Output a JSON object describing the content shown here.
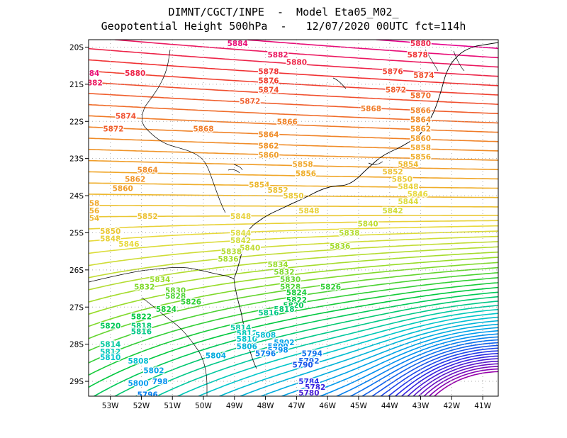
{
  "title_line1": "DIMNT/CGCT/INPE  -  Model Eta05_M02_",
  "title_line2": "Geopotential Height 500hPa  -   12/07/2020 00UTC fct=114h",
  "x_ticks": [
    "53W",
    "52W",
    "51W",
    "50W",
    "49W",
    "48W",
    "47W",
    "46W",
    "45W",
    "44W",
    "43W",
    "42W",
    "41W"
  ],
  "y_ticks": [
    "20S",
    "21S",
    "22S",
    "23S",
    "24S",
    "25S",
    "26S",
    "27S",
    "28S",
    "29S"
  ],
  "chart_data": {
    "type": "contour",
    "field": "Geopotential Height 500hPa",
    "lon_range": [
      -53.7,
      -40.5
    ],
    "lat_range": [
      -29.4,
      -19.8
    ],
    "contour_interval": 2,
    "contour_levels_range": [
      5770,
      5886
    ],
    "labels": [
      {
        "value": "5884",
        "lon": -48.9,
        "lat": -19.9
      },
      {
        "value": "5882",
        "lon": -47.6,
        "lat": -20.2
      },
      {
        "value": "5880",
        "lon": -47.0,
        "lat": -20.4
      },
      {
        "value": "5880",
        "lon": -43.0,
        "lat": -19.9
      },
      {
        "value": "5878",
        "lon": -43.1,
        "lat": -20.2
      },
      {
        "value": "884",
        "lon": -53.6,
        "lat": -20.7
      },
      {
        "value": "882",
        "lon": -53.5,
        "lat": -20.95
      },
      {
        "value": "5880",
        "lon": -52.2,
        "lat": -20.7
      },
      {
        "value": "5878",
        "lon": -47.9,
        "lat": -20.65
      },
      {
        "value": "5876",
        "lon": -47.9,
        "lat": -20.9
      },
      {
        "value": "5874",
        "lon": -47.9,
        "lat": -21.15
      },
      {
        "value": "5876",
        "lon": -43.9,
        "lat": -20.65
      },
      {
        "value": "5874",
        "lon": -42.9,
        "lat": -20.75
      },
      {
        "value": "5872",
        "lon": -43.8,
        "lat": -21.15
      },
      {
        "value": "5870",
        "lon": -43.0,
        "lat": -21.3
      },
      {
        "value": "5872",
        "lon": -48.5,
        "lat": -21.45
      },
      {
        "value": "5868",
        "lon": -44.6,
        "lat": -21.65
      },
      {
        "value": "5866",
        "lon": -43.0,
        "lat": -21.7
      },
      {
        "value": "5864",
        "lon": -43.0,
        "lat": -21.95
      },
      {
        "value": "5862",
        "lon": -43.0,
        "lat": -22.2
      },
      {
        "value": "5874",
        "lon": -52.5,
        "lat": -21.85
      },
      {
        "value": "5872",
        "lon": -52.9,
        "lat": -22.2
      },
      {
        "value": "5866",
        "lon": -47.3,
        "lat": -22.0
      },
      {
        "value": "5868",
        "lon": -50.0,
        "lat": -22.2
      },
      {
        "value": "5864",
        "lon": -47.9,
        "lat": -22.35
      },
      {
        "value": "5860",
        "lon": -43.0,
        "lat": -22.45
      },
      {
        "value": "5858",
        "lon": -43.0,
        "lat": -22.7
      },
      {
        "value": "5856",
        "lon": -43.0,
        "lat": -22.95
      },
      {
        "value": "5862",
        "lon": -47.9,
        "lat": -22.65
      },
      {
        "value": "5860",
        "lon": -47.9,
        "lat": -22.9
      },
      {
        "value": "5854",
        "lon": -43.4,
        "lat": -23.15
      },
      {
        "value": "5858",
        "lon": -46.8,
        "lat": -23.15
      },
      {
        "value": "5856",
        "lon": -46.7,
        "lat": -23.4
      },
      {
        "value": "5852",
        "lon": -43.9,
        "lat": -23.35
      },
      {
        "value": "5850",
        "lon": -43.6,
        "lat": -23.55
      },
      {
        "value": "5848",
        "lon": -43.4,
        "lat": -23.75
      },
      {
        "value": "5846",
        "lon": -43.1,
        "lat": -23.95
      },
      {
        "value": "5844",
        "lon": -43.4,
        "lat": -24.15
      },
      {
        "value": "5842",
        "lon": -43.9,
        "lat": -24.4
      },
      {
        "value": "5864",
        "lon": -51.8,
        "lat": -23.3
      },
      {
        "value": "5862",
        "lon": -52.2,
        "lat": -23.55
      },
      {
        "value": "5860",
        "lon": -52.6,
        "lat": -23.8
      },
      {
        "value": "5854",
        "lon": -48.2,
        "lat": -23.7
      },
      {
        "value": "5852",
        "lon": -47.6,
        "lat": -23.85
      },
      {
        "value": "5850",
        "lon": -47.1,
        "lat": -24.0
      },
      {
        "value": "858",
        "lon": -53.6,
        "lat": -24.2
      },
      {
        "value": "856",
        "lon": -53.6,
        "lat": -24.4
      },
      {
        "value": "854",
        "lon": -53.6,
        "lat": -24.6
      },
      {
        "value": "5852",
        "lon": -51.8,
        "lat": -24.55
      },
      {
        "value": "5848",
        "lon": -46.6,
        "lat": -24.4
      },
      {
        "value": "5848",
        "lon": -48.8,
        "lat": -24.55
      },
      {
        "value": "5840",
        "lon": -44.7,
        "lat": -24.75
      },
      {
        "value": "5838",
        "lon": -45.3,
        "lat": -25.0
      },
      {
        "value": "5850",
        "lon": -53.0,
        "lat": -24.95
      },
      {
        "value": "5848",
        "lon": -53.0,
        "lat": -25.15
      },
      {
        "value": "5846",
        "lon": -52.4,
        "lat": -25.3
      },
      {
        "value": "5844",
        "lon": -48.8,
        "lat": -25.0
      },
      {
        "value": "5842",
        "lon": -48.8,
        "lat": -25.2
      },
      {
        "value": "5840",
        "lon": -48.5,
        "lat": -25.4
      },
      {
        "value": "5836",
        "lon": -45.6,
        "lat": -25.35
      },
      {
        "value": "5838",
        "lon": -49.1,
        "lat": -25.5
      },
      {
        "value": "5836",
        "lon": -49.2,
        "lat": -25.7
      },
      {
        "value": "5834",
        "lon": -47.6,
        "lat": -25.85
      },
      {
        "value": "5832",
        "lon": -47.4,
        "lat": -26.05
      },
      {
        "value": "5830",
        "lon": -47.2,
        "lat": -26.25
      },
      {
        "value": "5828",
        "lon": -47.2,
        "lat": -26.45
      },
      {
        "value": "5826",
        "lon": -45.9,
        "lat": -26.45
      },
      {
        "value": "5834",
        "lon": -51.4,
        "lat": -26.25
      },
      {
        "value": "5832",
        "lon": -51.9,
        "lat": -26.45
      },
      {
        "value": "5830",
        "lon": -50.9,
        "lat": -26.55
      },
      {
        "value": "5828",
        "lon": -50.9,
        "lat": -26.7
      },
      {
        "value": "5826",
        "lon": -50.4,
        "lat": -26.85
      },
      {
        "value": "5824",
        "lon": -51.2,
        "lat": -27.05
      },
      {
        "value": "5824",
        "lon": -47.0,
        "lat": -26.6
      },
      {
        "value": "5822",
        "lon": -47.0,
        "lat": -26.8
      },
      {
        "value": "5820",
        "lon": -47.1,
        "lat": -26.95
      },
      {
        "value": "5818",
        "lon": -47.4,
        "lat": -27.05
      },
      {
        "value": "5816",
        "lon": -47.9,
        "lat": -27.15
      },
      {
        "value": "5822",
        "lon": -52.0,
        "lat": -27.25
      },
      {
        "value": "5820",
        "lon": -53.0,
        "lat": -27.5
      },
      {
        "value": "5818",
        "lon": -52.0,
        "lat": -27.5
      },
      {
        "value": "5816",
        "lon": -52.0,
        "lat": -27.65
      },
      {
        "value": "5814",
        "lon": -48.8,
        "lat": -27.55
      },
      {
        "value": "5812",
        "lon": -48.6,
        "lat": -27.7
      },
      {
        "value": "5810",
        "lon": -48.6,
        "lat": -27.85
      },
      {
        "value": "5808",
        "lon": -48.0,
        "lat": -27.75
      },
      {
        "value": "5814",
        "lon": -53.0,
        "lat": -28.0
      },
      {
        "value": "5812",
        "lon": -53.0,
        "lat": -28.2
      },
      {
        "value": "5810",
        "lon": -53.0,
        "lat": -28.35
      },
      {
        "value": "5808",
        "lon": -52.1,
        "lat": -28.45
      },
      {
        "value": "5806",
        "lon": -48.6,
        "lat": -28.05
      },
      {
        "value": "5804",
        "lon": -49.6,
        "lat": -28.3
      },
      {
        "value": "5802",
        "lon": -47.4,
        "lat": -27.95
      },
      {
        "value": "5800",
        "lon": -47.6,
        "lat": -28.05
      },
      {
        "value": "5798",
        "lon": -47.6,
        "lat": -28.15
      },
      {
        "value": "5796",
        "lon": -48.0,
        "lat": -28.25
      },
      {
        "value": "5794",
        "lon": -46.5,
        "lat": -28.25
      },
      {
        "value": "5792",
        "lon": -46.6,
        "lat": -28.45
      },
      {
        "value": "5790",
        "lon": -46.8,
        "lat": -28.55
      },
      {
        "value": "5802",
        "lon": -51.6,
        "lat": -28.7
      },
      {
        "value": "5800",
        "lon": -52.1,
        "lat": -29.05
      },
      {
        "value": "798",
        "lon": -51.4,
        "lat": -29.0
      },
      {
        "value": "5796",
        "lon": -51.8,
        "lat": -29.35
      },
      {
        "value": "5784",
        "lon": -46.6,
        "lat": -29.0
      },
      {
        "value": "5782",
        "lon": -46.4,
        "lat": -29.15
      },
      {
        "value": "5780",
        "lon": -46.6,
        "lat": -29.3
      }
    ]
  },
  "colors": {
    "frame": "#000000",
    "grid": "#aaaaaa",
    "coast": "#000000"
  }
}
